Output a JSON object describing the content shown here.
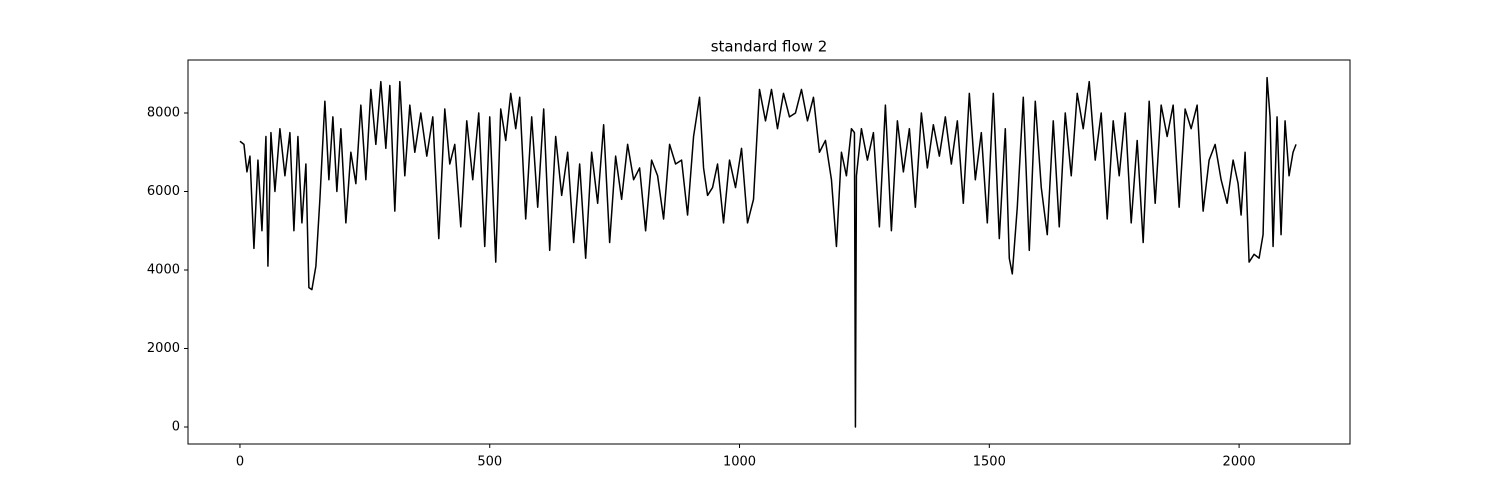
{
  "chart_data": {
    "type": "line",
    "title": "standard flow 2",
    "color": "#000000",
    "grid": false,
    "x": [
      0,
      8,
      14,
      20,
      28,
      36,
      44,
      52,
      56,
      62,
      70,
      80,
      90,
      100,
      108,
      116,
      124,
      132,
      138,
      144,
      152,
      160,
      170,
      178,
      186,
      194,
      202,
      212,
      222,
      232,
      242,
      252,
      262,
      272,
      282,
      292,
      300,
      310,
      320,
      330,
      340,
      350,
      362,
      374,
      386,
      398,
      410,
      420,
      430,
      442,
      454,
      466,
      478,
      490,
      500,
      512,
      522,
      532,
      542,
      552,
      560,
      572,
      584,
      596,
      608,
      620,
      632,
      644,
      656,
      668,
      680,
      692,
      704,
      716,
      728,
      740,
      752,
      764,
      776,
      788,
      800,
      812,
      824,
      836,
      848,
      860,
      872,
      884,
      896,
      908,
      920,
      928,
      936,
      946,
      956,
      968,
      980,
      992,
      1004,
      1016,
      1028,
      1040,
      1052,
      1064,
      1076,
      1088,
      1100,
      1112,
      1124,
      1136,
      1148,
      1160,
      1172,
      1184,
      1194,
      1204,
      1214,
      1224,
      1230,
      1232,
      1234,
      1244,
      1256,
      1268,
      1280,
      1292,
      1304,
      1316,
      1328,
      1340,
      1352,
      1364,
      1376,
      1388,
      1400,
      1412,
      1424,
      1436,
      1448,
      1460,
      1472,
      1484,
      1496,
      1508,
      1520,
      1532,
      1540,
      1546,
      1556,
      1568,
      1580,
      1592,
      1604,
      1616,
      1628,
      1640,
      1652,
      1664,
      1676,
      1688,
      1700,
      1712,
      1724,
      1736,
      1748,
      1760,
      1772,
      1784,
      1796,
      1808,
      1820,
      1832,
      1844,
      1856,
      1868,
      1880,
      1892,
      1904,
      1916,
      1928,
      1940,
      1952,
      1964,
      1976,
      1988,
      1998,
      2004,
      2012,
      2020,
      2030,
      2040,
      2048,
      2056,
      2062,
      2068,
      2076,
      2084,
      2092,
      2100,
      2108,
      2114
    ],
    "values": [
      7280,
      7200,
      6500,
      6900,
      4550,
      6800,
      5000,
      7400,
      4100,
      7500,
      6000,
      7600,
      6400,
      7500,
      5000,
      7400,
      5200,
      6700,
      3550,
      3500,
      4100,
      5800,
      8300,
      6300,
      7900,
      6000,
      7600,
      5200,
      7000,
      6200,
      8200,
      6300,
      8600,
      7200,
      8800,
      7100,
      8700,
      5500,
      8800,
      6400,
      8200,
      7000,
      8000,
      6900,
      7900,
      4800,
      8100,
      6700,
      7200,
      5100,
      7800,
      6300,
      8000,
      4600,
      7900,
      4200,
      8100,
      7300,
      8500,
      7600,
      8400,
      5300,
      7900,
      5600,
      8100,
      4500,
      7400,
      5900,
      7000,
      4700,
      6700,
      4300,
      7000,
      5700,
      7700,
      4700,
      6900,
      5800,
      7200,
      6300,
      6600,
      5000,
      6800,
      6400,
      5300,
      7200,
      6700,
      6800,
      5400,
      7400,
      8400,
      6600,
      5900,
      6100,
      6700,
      5200,
      6800,
      6100,
      7100,
      5200,
      5800,
      8600,
      7800,
      8600,
      7600,
      8500,
      7900,
      8000,
      8600,
      7800,
      8400,
      7000,
      7300,
      6300,
      4600,
      7000,
      6400,
      7600,
      7500,
      0,
      6400,
      7600,
      6800,
      7500,
      5100,
      8200,
      5000,
      7800,
      6500,
      7600,
      5600,
      8000,
      6600,
      7700,
      6900,
      7900,
      6700,
      7800,
      5700,
      8500,
      6300,
      7500,
      5200,
      8500,
      4800,
      7600,
      4300,
      3900,
      5600,
      8400,
      4500,
      8300,
      6100,
      4900,
      7800,
      5100,
      8000,
      6400,
      8500,
      7600,
      8800,
      6800,
      8000,
      5300,
      7800,
      6400,
      8000,
      5200,
      7300,
      4700,
      8300,
      5700,
      8200,
      7400,
      8200,
      5600,
      8100,
      7600,
      8200,
      5500,
      6800,
      7200,
      6300,
      5700,
      6800,
      6200,
      5400,
      7000,
      4200,
      4400,
      4300,
      4900,
      8900,
      7900,
      4600,
      7900,
      4900,
      7800,
      6400,
      7000,
      7200
    ],
    "xlim": [
      -104,
      2222
    ],
    "ylim": [
      -433,
      9350
    ],
    "xticks": [
      0,
      500,
      1000,
      1500,
      2000
    ],
    "yticks": [
      0,
      2000,
      4000,
      6000,
      8000
    ]
  }
}
